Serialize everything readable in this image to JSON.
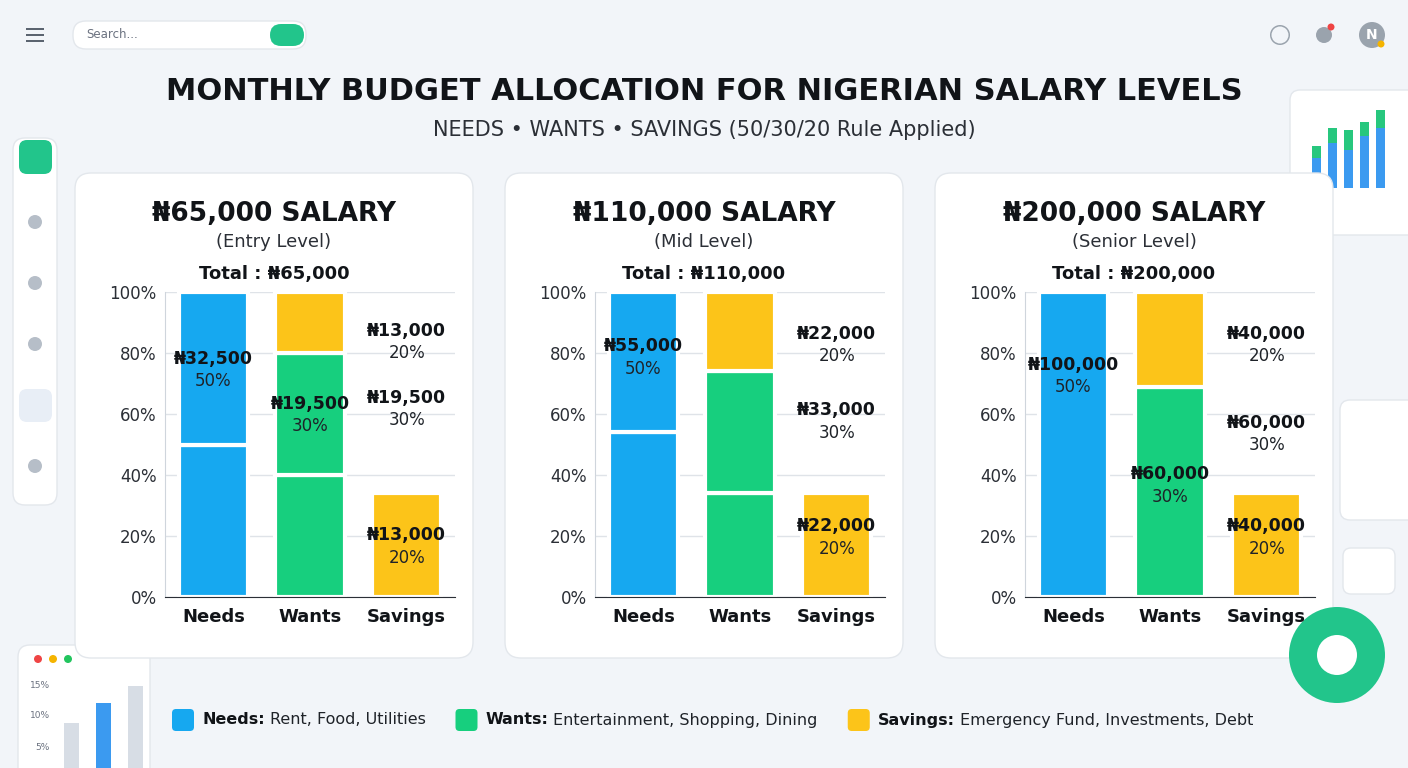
{
  "title": "MONTHLY BUDGET ALLOCATION FOR NIGERIAN SALARY LEVELS",
  "subtitle": "NEEDS • WANTS • SAVINGS (50/30/20 Rule Applied)",
  "search_placeholder": "Search...",
  "avatar": "N",
  "decor_ticks": [
    "15%",
    "10%",
    "5%"
  ],
  "legend_entries": [
    {
      "name": "Needs:",
      "description": "Rent, Food, Utilities",
      "color": "#16a8f0"
    },
    {
      "name": "Wants:",
      "description": "Entertainment, Shopping, Dining",
      "color": "#17cf7e"
    },
    {
      "name": "Savings:",
      "description": "Emergency Fund, Investments, Debt",
      "color": "#fcc419"
    }
  ],
  "chart_data": [
    {
      "type": "bar",
      "stacked": true,
      "grid": true,
      "data_labels": false,
      "title": "₦65,000 SALARY",
      "level": "(Entry Level)",
      "total": "Total : ₦65,000",
      "categories": [
        "Needs",
        "Wants",
        "Savings"
      ],
      "segments": [
        [
          {
            "value": 50,
            "color": "#16a8f0"
          },
          {
            "value": 50,
            "color": "#16a8f0"
          }
        ],
        [
          {
            "value": 40,
            "color": "#17cf7e"
          },
          {
            "value": 40,
            "color": "#17cf7e"
          },
          {
            "value": 20,
            "color": "#fcc419"
          }
        ],
        [
          {
            "value": 34,
            "color": "#fcc419"
          }
        ]
      ],
      "ylim": [
        0,
        100
      ],
      "yticks": [
        {
          "value": 0,
          "label": "0%"
        },
        {
          "value": 20,
          "label": "20%"
        },
        {
          "value": 40,
          "label": "40%"
        },
        {
          "value": 60,
          "label": "60%"
        },
        {
          "value": 80,
          "label": "80%"
        },
        {
          "value": 100,
          "label": "100%"
        }
      ],
      "labels": [
        {
          "category": "Needs",
          "y": 75,
          "amount": "₦32,500",
          "share": "50%"
        },
        {
          "category": "Wants",
          "y": 60,
          "amount": "₦19,500",
          "share": "30%"
        },
        {
          "category": "Savings",
          "y": 84,
          "amount": "₦13,000",
          "share": "20%"
        },
        {
          "category": "Savings",
          "y": 62,
          "amount": "₦19,500",
          "share": "30%"
        },
        {
          "category": "Savings",
          "y": 17,
          "amount": "₦13,000",
          "share": "20%"
        }
      ]
    },
    {
      "type": "bar",
      "stacked": true,
      "grid": true,
      "data_labels": false,
      "title": "₦110,000 SALARY",
      "level": "(Mid Level)",
      "total": "Total : ₦110,000",
      "categories": [
        "Needs",
        "Wants",
        "Savings"
      ],
      "segments": [
        [
          {
            "value": 54,
            "color": "#16a8f0"
          },
          {
            "value": 46,
            "color": "#16a8f0"
          }
        ],
        [
          {
            "value": 34,
            "color": "#17cf7e"
          },
          {
            "value": 40,
            "color": "#17cf7e"
          },
          {
            "value": 26,
            "color": "#fcc419"
          }
        ],
        [
          {
            "value": 34,
            "color": "#fcc419"
          }
        ]
      ],
      "ylim": [
        0,
        100
      ],
      "yticks": [
        {
          "value": 0,
          "label": "0%"
        },
        {
          "value": 20,
          "label": "20%"
        },
        {
          "value": 40,
          "label": "40%"
        },
        {
          "value": 60,
          "label": "60%"
        },
        {
          "value": 80,
          "label": "80%"
        },
        {
          "value": 100,
          "label": "100%"
        }
      ],
      "labels": [
        {
          "category": "Needs",
          "y": 79,
          "amount": "₦55,000",
          "share": "50%"
        },
        {
          "category": "Savings",
          "y": 83,
          "amount": "₦22,000",
          "share": "20%"
        },
        {
          "category": "Savings",
          "y": 58,
          "amount": "₦33,000",
          "share": "30%"
        },
        {
          "category": "Savings",
          "y": 20,
          "amount": "₦22,000",
          "share": "20%"
        }
      ]
    },
    {
      "type": "bar",
      "stacked": true,
      "grid": true,
      "data_labels": false,
      "title": "₦200,000 SALARY",
      "level": "(Senior Level)",
      "total": "Total : ₦200,000",
      "categories": [
        "Needs",
        "Wants",
        "Savings"
      ],
      "segments": [
        [
          {
            "value": 100,
            "color": "#16a8f0"
          }
        ],
        [
          {
            "value": 69,
            "color": "#17cf7e"
          },
          {
            "value": 31,
            "color": "#fcc419"
          }
        ],
        [
          {
            "value": 34,
            "color": "#fcc419"
          }
        ]
      ],
      "ylim": [
        0,
        100
      ],
      "yticks": [
        {
          "value": 0,
          "label": "0%"
        },
        {
          "value": 20,
          "label": "20%"
        },
        {
          "value": 40,
          "label": "40%"
        },
        {
          "value": 60,
          "label": "60%"
        },
        {
          "value": 80,
          "label": "80%"
        },
        {
          "value": 100,
          "label": "100%"
        }
      ],
      "labels": [
        {
          "category": "Needs",
          "y": 73,
          "amount": "₦100,000",
          "share": "50%"
        },
        {
          "category": "Wants",
          "y": 37,
          "amount": "₦60,000",
          "share": "30%"
        },
        {
          "category": "Savings",
          "y": 83,
          "amount": "₦40,000",
          "share": "20%"
        },
        {
          "category": "Savings",
          "y": 54,
          "amount": "₦60,000",
          "share": "30%"
        },
        {
          "category": "Savings",
          "y": 20,
          "amount": "₦40,000",
          "share": "20%"
        }
      ]
    }
  ]
}
